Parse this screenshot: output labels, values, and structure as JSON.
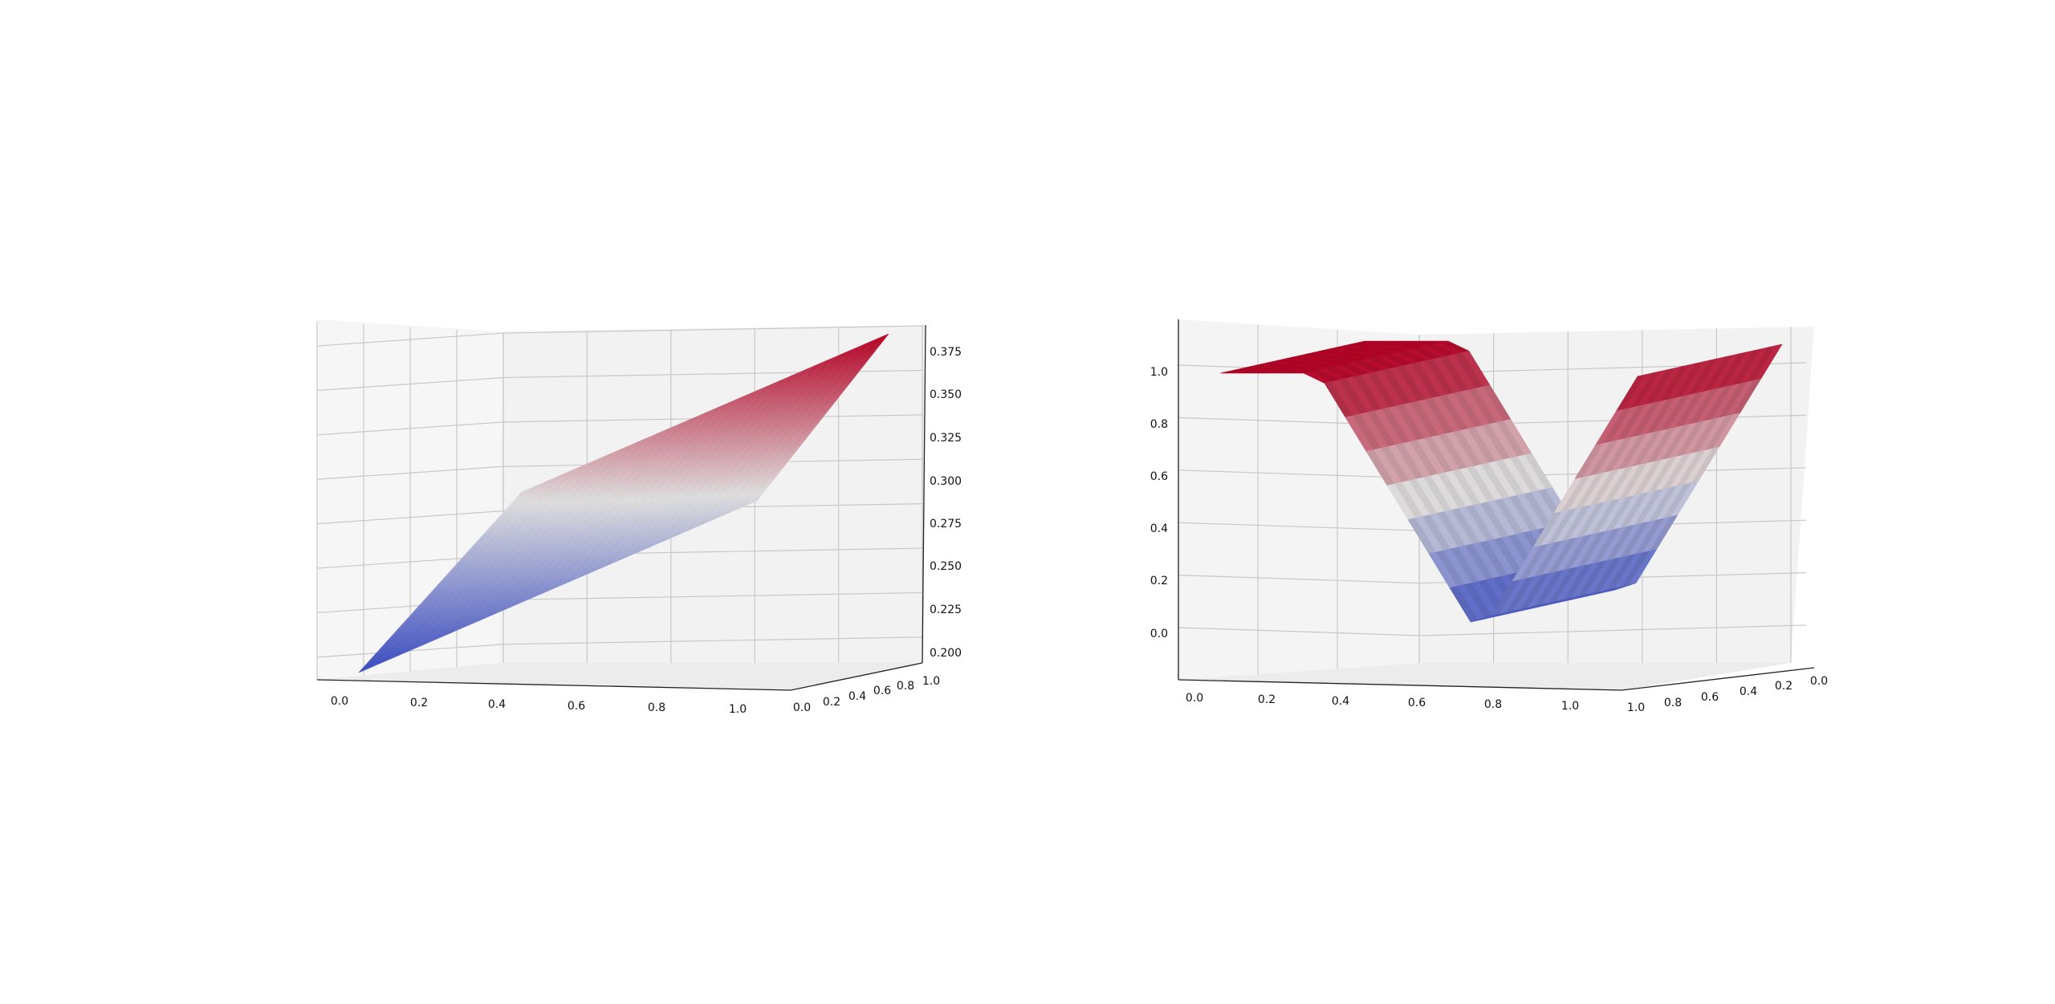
{
  "chart_data": [
    {
      "type": "surface3d",
      "title": "",
      "xlabel": "",
      "ylabel": "",
      "zlabel": "",
      "colormap": "coolwarm",
      "grid": true,
      "x_ticks": [
        "0.0",
        "0.2",
        "0.4",
        "0.6",
        "0.8",
        "1.0"
      ],
      "y_ticks": [
        "0.0",
        "0.2",
        "0.4",
        "0.6",
        "0.8",
        "1.0"
      ],
      "z_ticks": [
        "0.200",
        "0.225",
        "0.250",
        "0.275",
        "0.300",
        "0.325",
        "0.350",
        "0.375"
      ],
      "zlim": [
        0.19,
        0.38
      ],
      "surface": {
        "description": "planar surface rising from x=0 to x=1",
        "z_at_corners": {
          "x0_y0": 0.19,
          "x1_y0": 0.29,
          "x0_y1": 0.28,
          "x1_y1": 0.38
        }
      }
    },
    {
      "type": "surface3d",
      "title": "",
      "xlabel": "",
      "ylabel": "",
      "zlabel": "",
      "colormap": "coolwarm",
      "grid": true,
      "x_ticks": [
        "0.0",
        "0.2",
        "0.4",
        "0.6",
        "0.8",
        "1.0"
      ],
      "y_ticks": [
        "1.0",
        "0.8",
        "0.6",
        "0.4",
        "0.2",
        "0.0"
      ],
      "z_ticks": [
        "0.0",
        "0.2",
        "0.4",
        "0.6",
        "0.8",
        "1.0"
      ],
      "zlim": [
        -0.1,
        1.15
      ],
      "surface": {
        "description": "V-shaped valley surface, minimum near x=0.6-0.8, maximum at edges",
        "z_min": 0.0,
        "z_max": 1.0
      }
    }
  ],
  "colors": {
    "blue": "#3b4cc0",
    "neutral": "#dddddd",
    "red": "#b40426",
    "pane": "#f2f2f2",
    "grid": "#c8c8c8"
  }
}
